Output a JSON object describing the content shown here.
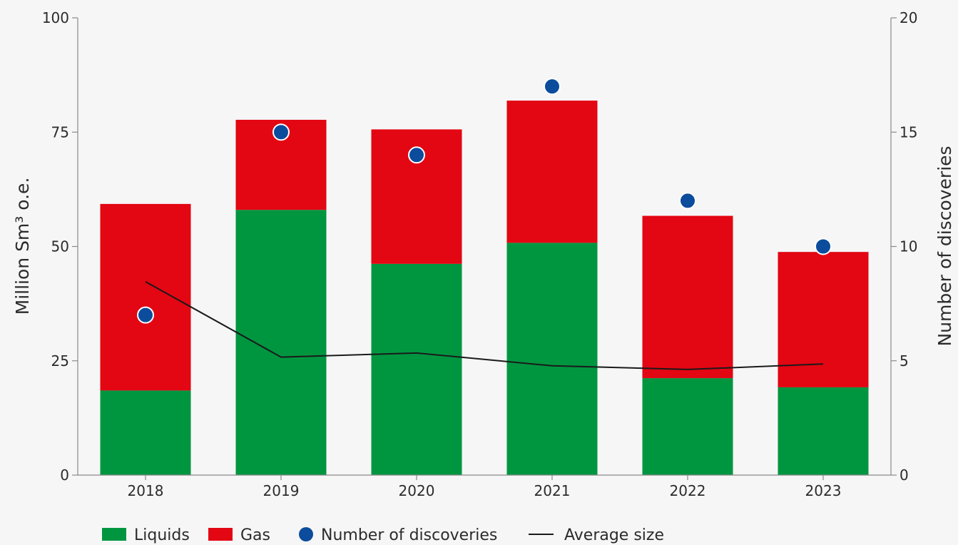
{
  "chart_data": {
    "type": "bar",
    "stacked": true,
    "categories": [
      "2018",
      "2019",
      "2020",
      "2021",
      "2022",
      "2023"
    ],
    "series": [
      {
        "name": "Liquids",
        "kind": "bar",
        "axis": "left",
        "color": "#009640",
        "values": [
          18.5,
          58,
          46.2,
          50.8,
          21.2,
          19.2
        ]
      },
      {
        "name": "Gas",
        "kind": "bar",
        "axis": "left",
        "color": "#e30613",
        "values": [
          40.8,
          19.7,
          29.4,
          31.1,
          35.5,
          29.6
        ]
      },
      {
        "name": "Number of discoveries",
        "kind": "scatter",
        "axis": "right",
        "color": "#0b4c9c",
        "values": [
          7,
          15,
          14,
          17,
          12,
          10
        ]
      },
      {
        "name": "Average size",
        "kind": "line",
        "axis": "left",
        "color": "#1a1a1a",
        "values": [
          42.3,
          25.8,
          26.7,
          23.9,
          23.1,
          24.3
        ]
      }
    ],
    "y_left": {
      "label": "Million Sm³ o.e.",
      "ylim": [
        0,
        100
      ],
      "ticks": [
        "0",
        "25",
        "50",
        "75",
        "100"
      ]
    },
    "y_right": {
      "label": "Number of discoveries",
      "ylim": [
        0,
        20
      ],
      "ticks": [
        "0",
        "5",
        "10",
        "15",
        "20"
      ]
    },
    "grid": false,
    "legend_position": "bottom-left"
  }
}
